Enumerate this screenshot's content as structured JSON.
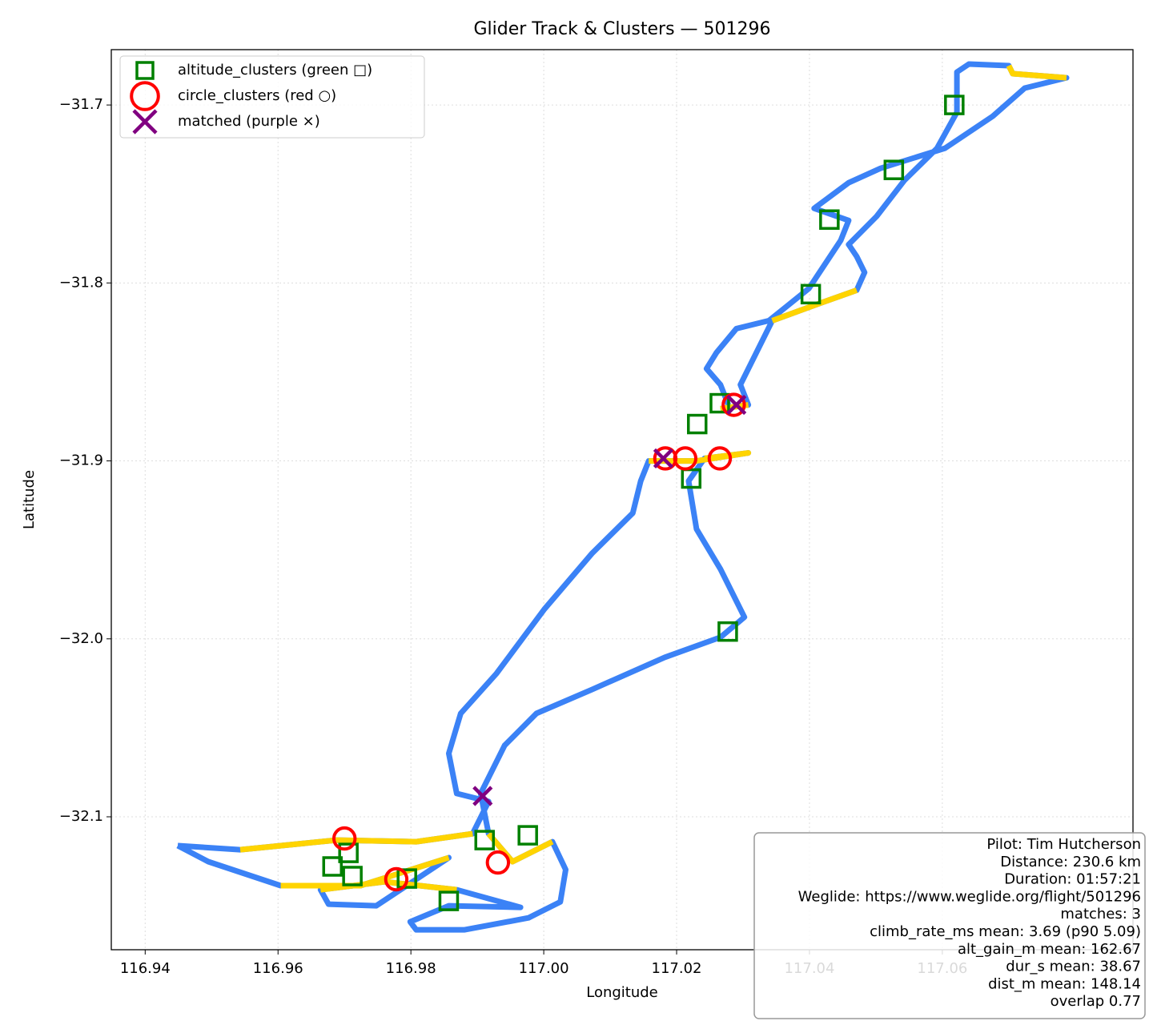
{
  "chart_data": {
    "type": "scatter",
    "title": "Glider Track & Clusters — 501296",
    "x_label": "Longitude",
    "y_label": "Latitude",
    "xlim": [
      116.9349,
      117.0887
    ],
    "ylim": [
      -32.1747,
      -31.6689
    ],
    "xticks": [
      116.94,
      116.96,
      116.98,
      {
        "value": 117.0,
        "label": "117.00"
      },
      117.02,
      117.04,
      117.06
    ],
    "yticks": [
      {
        "value": -31.7,
        "label": "−31.7"
      },
      {
        "value": -31.8,
        "label": "−31.8"
      },
      {
        "value": -31.9,
        "label": "−31.9"
      },
      {
        "value": -32.0,
        "label": "−32.0"
      },
      {
        "value": -32.1,
        "label": "−32.1"
      }
    ],
    "grid": true,
    "legend_position": "upper left",
    "tracks": [
      {
        "color": "#3b82f6",
        "x": [
          116.9449,
          116.9543,
          116.9688,
          116.9808,
          116.9893,
          116.9917,
          116.9869,
          116.9857,
          116.9875,
          116.9929,
          117.0001,
          117.0073,
          117.0134,
          117.0146,
          117.0158,
          117.023,
          117.0308,
          117.0242,
          117.0218,
          117.023,
          117.0266,
          117.0302,
          117.0266,
          117.0182,
          117.0073,
          116.9989,
          116.9941,
          116.9905,
          116.9917,
          116.9953,
          117.0013,
          117.0033,
          117.0025,
          116.9977,
          116.9881,
          116.9808,
          116.9799,
          116.9857,
          116.9965,
          116.9869,
          116.976,
          116.9664,
          116.9676,
          116.9748,
          116.9857,
          116.9724,
          116.9604,
          116.9495,
          116.9449,
          null,
          117.0266,
          117.0308,
          117.0296,
          117.032,
          117.0344,
          117.041,
          117.0471,
          117.0483,
          117.0471,
          117.0459,
          117.0501,
          117.0543,
          117.0592,
          117.0622,
          117.0622,
          117.064,
          117.07,
          117.0706,
          117.0787,
          117.0724,
          117.0676,
          117.0604,
          117.0507,
          117.0459,
          117.0407,
          117.0459,
          117.0447,
          117.0399,
          117.0339,
          117.029,
          117.026,
          117.0245,
          117.0266,
          117.0278
        ],
        "y": [
          -32.1162,
          -32.1185,
          -32.1131,
          -32.114,
          -32.1095,
          -32.0914,
          -32.0869,
          -32.0644,
          -32.0419,
          -32.0194,
          -31.9833,
          -31.9518,
          -31.9293,
          -31.9113,
          -31.9,
          -31.9,
          -31.8955,
          -31.8986,
          -31.9113,
          -31.9383,
          -31.9608,
          -31.9878,
          -31.9991,
          -32.0104,
          -32.0284,
          -32.0419,
          -32.0599,
          -32.0869,
          -32.1095,
          -32.1252,
          -32.114,
          -32.1297,
          -32.1478,
          -32.1568,
          -32.1635,
          -32.1635,
          -32.159,
          -32.15,
          -32.1509,
          -32.141,
          -32.1365,
          -32.141,
          -32.1491,
          -32.15,
          -32.123,
          -32.1387,
          -32.1387,
          -32.1252,
          -32.1162,
          null,
          -31.8707,
          -31.8685,
          -31.8572,
          -31.8392,
          -31.8212,
          -31.8122,
          -31.8041,
          -31.7941,
          -31.7851,
          -31.7784,
          -31.7626,
          -31.7423,
          -31.7243,
          -31.7041,
          -31.6815,
          -31.677,
          -31.6779,
          -31.6824,
          -31.6847,
          -31.6905,
          -31.7063,
          -31.7243,
          -31.7356,
          -31.7437,
          -31.7581,
          -31.7649,
          -31.7761,
          -31.8032,
          -31.8212,
          -31.8257,
          -31.8392,
          -31.8482,
          -31.8572,
          -31.8685
        ]
      },
      {
        "color": "#ffd400",
        "x": [
          116.9543,
          116.9688,
          116.9808,
          116.9893,
          null,
          117.0158,
          117.023,
          117.0308,
          117.0242,
          null,
          116.9917,
          116.9953,
          117.0013,
          null,
          116.9869,
          116.976,
          116.9664,
          null,
          116.9857,
          116.9724,
          116.9604,
          null,
          117.0266,
          117.0308,
          null,
          117.0344,
          117.041,
          117.0471,
          null,
          117.07,
          117.0706,
          117.0787
        ],
        "y": [
          -32.1185,
          -32.1131,
          -32.114,
          -32.1095,
          null,
          -31.9,
          -31.9,
          -31.8955,
          -31.8986,
          null,
          -32.1095,
          -32.1252,
          -32.114,
          null,
          -32.141,
          -32.1365,
          -32.141,
          null,
          -32.123,
          -32.1387,
          -32.1387,
          null,
          -31.8707,
          -31.8685,
          null,
          -31.8212,
          -31.8122,
          -31.8041,
          null,
          -31.6779,
          -31.6824,
          -31.6847
        ]
      }
    ],
    "series": [
      {
        "name": "altitude_clusters (green □)",
        "color": "#008000",
        "marker": "square",
        "x": [
          117.0618,
          117.0527,
          117.043,
          117.0402,
          117.0265,
          117.0231,
          117.0222,
          117.0277,
          116.9976,
          116.9682,
          116.9712,
          116.9706,
          116.9794,
          116.9857,
          116.9911
        ],
        "values": [
          -31.7,
          -31.7365,
          -31.7644,
          -31.8063,
          -31.8676,
          -31.8793,
          -31.9099,
          -31.9959,
          -32.1104,
          -32.1279,
          -32.1333,
          -32.1203,
          -32.1347,
          -32.1473,
          -32.1131
        ]
      },
      {
        "name": "circle_clusters (red ○)",
        "color": "#ff0000",
        "marker": "circle",
        "x": [
          116.97,
          116.9778,
          116.9931,
          117.0265,
          117.0213,
          117.0183,
          117.0286
        ],
        "values": [
          -32.1122,
          -32.1351,
          -32.1257,
          -31.8986,
          -31.8986,
          -31.8986,
          -31.8685
        ]
      },
      {
        "name": "matched (purple ×)",
        "color": "#800080",
        "marker": "x",
        "x": [
          117.018,
          117.029,
          116.9908
        ],
        "values": [
          -31.8986,
          -31.8685,
          -32.0883
        ]
      }
    ],
    "annotation": [
      "Pilot: Tim Hutcherson",
      "Distance: 230.6 km",
      "Duration: 01:57:21",
      "Weglide: https://www.weglide.org/flight/501296",
      "matches: 3",
      "climb_rate_ms mean: 3.69 (p90 5.09)",
      "alt_gain_m mean: 162.67",
      "dur_s mean: 38.67",
      "dist_m mean: 148.14",
      "overlap 0.77"
    ]
  }
}
